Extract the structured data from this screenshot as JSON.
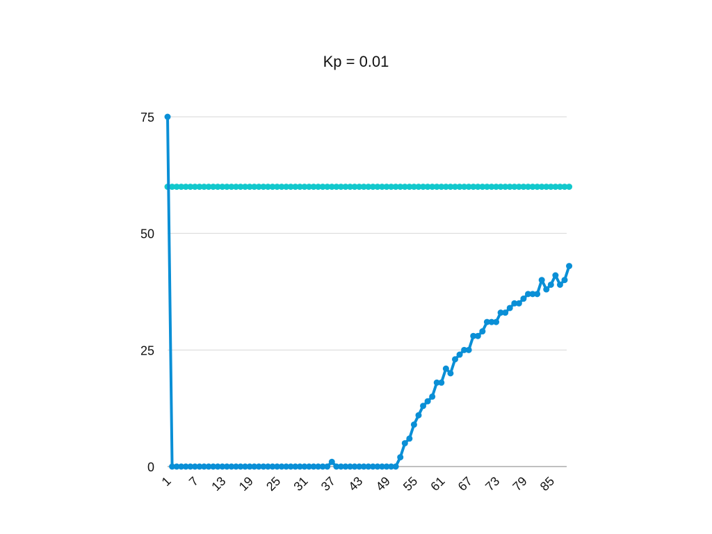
{
  "chart_data": {
    "type": "line",
    "title": "Kp = 0.01",
    "xlabel": "",
    "ylabel": "",
    "x_start": 1,
    "x_end": 88,
    "x_tick_labels": [
      "1",
      "7",
      "13",
      "19",
      "25",
      "31",
      "37",
      "43",
      "49",
      "55",
      "61",
      "67",
      "73",
      "79",
      "85"
    ],
    "ylim": [
      0,
      75
    ],
    "y_ticks": [
      0,
      25,
      50,
      75
    ],
    "grid": true,
    "legend": "none",
    "series": [
      {
        "color": "#0a8fd6",
        "values": [
          75,
          0,
          0,
          0,
          0,
          0,
          0,
          0,
          0,
          0,
          0,
          0,
          0,
          0,
          0,
          0,
          0,
          0,
          0,
          0,
          0,
          0,
          0,
          0,
          0,
          0,
          0,
          0,
          0,
          0,
          0,
          0,
          0,
          0,
          0,
          0,
          1,
          0,
          0,
          0,
          0,
          0,
          0,
          0,
          0,
          0,
          0,
          0,
          0,
          0,
          0,
          2,
          5,
          6,
          9,
          11,
          13,
          14,
          15,
          18,
          18,
          21,
          20,
          23,
          24,
          25,
          25,
          28,
          28,
          29,
          31,
          31,
          31,
          33,
          33,
          34,
          35,
          35,
          36,
          37,
          37,
          37,
          40,
          38,
          39,
          41,
          39,
          40,
          43
        ]
      },
      {
        "color": "#12c8cc",
        "values": [
          60,
          60,
          60,
          60,
          60,
          60,
          60,
          60,
          60,
          60,
          60,
          60,
          60,
          60,
          60,
          60,
          60,
          60,
          60,
          60,
          60,
          60,
          60,
          60,
          60,
          60,
          60,
          60,
          60,
          60,
          60,
          60,
          60,
          60,
          60,
          60,
          60,
          60,
          60,
          60,
          60,
          60,
          60,
          60,
          60,
          60,
          60,
          60,
          60,
          60,
          60,
          60,
          60,
          60,
          60,
          60,
          60,
          60,
          60,
          60,
          60,
          60,
          60,
          60,
          60,
          60,
          60,
          60,
          60,
          60,
          60,
          60,
          60,
          60,
          60,
          60,
          60,
          60,
          60,
          60,
          60,
          60,
          60,
          60,
          60,
          60,
          60,
          60,
          60
        ]
      }
    ]
  }
}
